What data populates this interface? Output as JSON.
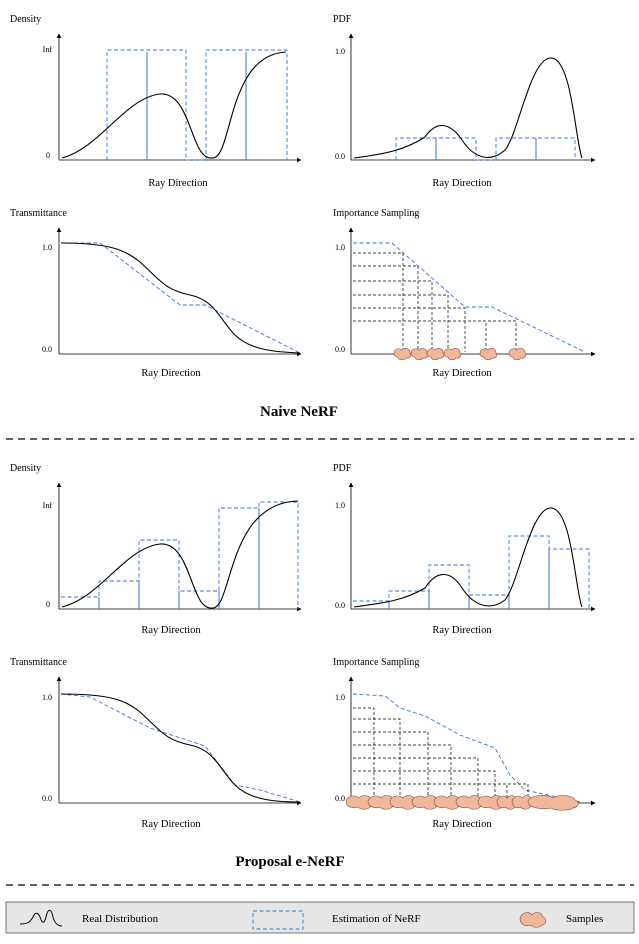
{
  "sections": {
    "naive": "Naive NeRF",
    "proposal": "Proposal e-NeRF"
  },
  "panels": {
    "density_title": "Density",
    "pdf_title": "PDF",
    "transmittance_title": "Transmittance",
    "importance_title": "Importance Sampling",
    "x_label": "Ray Direction"
  },
  "ticks": {
    "inf": "Inf",
    "zero": "0",
    "one": "1.0",
    "zero_dec": "0.0"
  },
  "legend": {
    "real": "Real Distribution",
    "estimation": "Estimation of  NeRF",
    "samples": "Samples"
  },
  "colors": {
    "estimation": "#3a73d4",
    "samples_fill": "#f2b79a",
    "real": "#000000"
  }
}
